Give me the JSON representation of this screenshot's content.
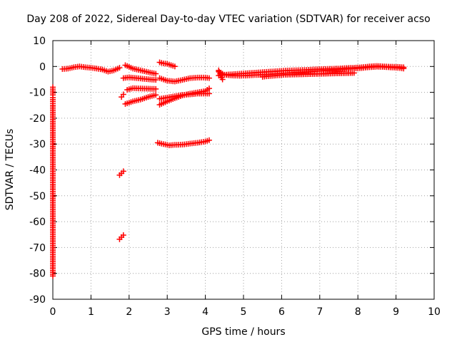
{
  "chart_data": {
    "type": "scatter",
    "title": "Day 208 of 2022, Sidereal Day-to-day VTEC variation (SDTVAR) for receiver acso",
    "xlabel": "GPS time / hours",
    "ylabel": "SDTVAR / TECUs",
    "xlim": [
      0,
      10
    ],
    "ylim": [
      -90,
      10
    ],
    "xticks": [
      0,
      1,
      2,
      3,
      4,
      5,
      6,
      7,
      8,
      9,
      10
    ],
    "yticks": [
      10,
      0,
      -10,
      -20,
      -30,
      -40,
      -50,
      -60,
      -70,
      -80,
      -90
    ],
    "grid": true,
    "legend": "none",
    "marker": "plus",
    "color": "#ff0000",
    "series": [
      {
        "x": [
          0.25,
          0.4,
          0.55,
          0.7,
          0.85,
          1.0,
          1.15,
          1.3,
          1.45,
          1.6,
          1.75
        ],
        "y": [
          -1.0,
          -0.8,
          -0.3,
          0.0,
          -0.3,
          -0.5,
          -0.8,
          -1.2,
          -2.0,
          -1.5,
          -0.5
        ]
      },
      {
        "x": [
          1.9,
          2.1,
          2.3,
          2.5,
          2.7
        ],
        "y": [
          0.5,
          -0.8,
          -1.5,
          -2.2,
          -2.8
        ]
      },
      {
        "x": [
          1.85,
          2.0,
          2.2,
          2.4,
          2.55,
          2.7
        ],
        "y": [
          -4.5,
          -4.2,
          -4.5,
          -4.8,
          -5.0,
          -5.2
        ]
      },
      {
        "x": [
          1.95,
          2.1,
          2.3,
          2.5,
          2.7
        ],
        "y": [
          -9.0,
          -8.4,
          -8.5,
          -8.6,
          -8.7
        ]
      },
      {
        "x": [
          1.9,
          2.1,
          2.3,
          2.5,
          2.7
        ],
        "y": [
          -14.5,
          -13.5,
          -12.8,
          -11.8,
          -11.0
        ]
      },
      {
        "x": [
          1.8,
          1.85
        ],
        "y": [
          -11.8,
          -10.8
        ]
      },
      {
        "x": [
          2.8,
          2.9,
          3.0,
          3.1,
          3.2
        ],
        "y": [
          1.6,
          1.2,
          1.0,
          0.5,
          0.0
        ]
      },
      {
        "x": [
          2.8,
          3.0,
          3.2,
          3.4,
          3.6,
          3.8,
          4.0,
          4.1
        ],
        "y": [
          -4.5,
          -5.5,
          -5.8,
          -5.2,
          -4.5,
          -4.3,
          -4.3,
          -4.5
        ]
      },
      {
        "x": [
          2.8,
          3.0,
          3.2,
          3.4,
          3.6,
          3.8,
          4.0,
          4.1
        ],
        "y": [
          -12.5,
          -12.0,
          -11.5,
          -11.0,
          -10.8,
          -10.5,
          -10.5,
          -10.5
        ]
      },
      {
        "x": [
          2.8,
          3.0,
          3.2,
          3.4,
          3.6,
          3.8,
          4.0,
          4.1
        ],
        "y": [
          -14.8,
          -13.5,
          -12.3,
          -11.2,
          -10.5,
          -10.0,
          -9.5,
          -8.5
        ]
      },
      {
        "x": [
          2.75,
          2.9,
          3.05,
          3.2,
          3.4,
          3.6,
          3.8,
          4.0,
          4.1
        ],
        "y": [
          -29.5,
          -30.0,
          -30.5,
          -30.3,
          -30.2,
          -29.8,
          -29.5,
          -29.0,
          -28.5
        ]
      },
      {
        "x": [
          1.75,
          1.8,
          1.85
        ],
        "y": [
          -42.0,
          -41.3,
          -40.5
        ]
      },
      {
        "x": [
          1.75,
          1.8,
          1.85
        ],
        "y": [
          -66.8,
          -66.0,
          -65.2
        ]
      },
      {
        "x": [
          4.35,
          4.5,
          4.7,
          4.9,
          5.1,
          5.3,
          5.5,
          5.7,
          5.9,
          6.1,
          6.3,
          6.5,
          6.7,
          6.9,
          7.1,
          7.3,
          7.5,
          7.7,
          7.9,
          8.1,
          8.3,
          8.5,
          8.7,
          8.9,
          9.1,
          9.2
        ],
        "y": [
          -3.5,
          -3.2,
          -3.0,
          -2.8,
          -2.6,
          -2.4,
          -2.2,
          -2.0,
          -1.8,
          -1.6,
          -1.5,
          -1.4,
          -1.3,
          -1.1,
          -1.0,
          -0.9,
          -0.8,
          -0.6,
          -0.5,
          -0.3,
          0.0,
          0.2,
          0.0,
          -0.1,
          -0.2,
          -0.3
        ]
      },
      {
        "x": [
          4.35,
          4.5,
          4.7,
          4.9,
          5.1,
          5.3,
          5.5,
          5.7,
          5.9,
          6.1,
          6.3,
          6.5,
          6.7,
          6.9,
          7.1,
          7.3,
          7.5,
          7.7,
          7.9,
          8.1,
          8.3,
          8.5,
          8.7,
          8.9,
          9.1,
          9.2
        ],
        "y": [
          -2.0,
          -3.2,
          -3.5,
          -3.6,
          -3.5,
          -3.3,
          -3.2,
          -3.0,
          -2.8,
          -2.6,
          -2.4,
          -2.2,
          -2.0,
          -1.8,
          -1.6,
          -1.4,
          -1.2,
          -1.0,
          -0.8,
          -0.6,
          -0.3,
          -0.1,
          -0.2,
          -0.4,
          -0.6,
          -0.8
        ]
      },
      {
        "x": [
          4.35,
          4.4,
          4.45
        ],
        "y": [
          -1.5,
          -3.5,
          -5.0
        ]
      },
      {
        "x": [
          5.5,
          5.6,
          6.1,
          7.9
        ],
        "y": [
          -4.0,
          -3.8,
          -3.2,
          -2.5
        ]
      },
      {
        "x": [
          0.0,
          0.0,
          0.0,
          0.0,
          0.0
        ],
        "y": [
          -8.0,
          -11.0,
          -12.0,
          -15.0,
          -81.0
        ]
      }
    ]
  }
}
